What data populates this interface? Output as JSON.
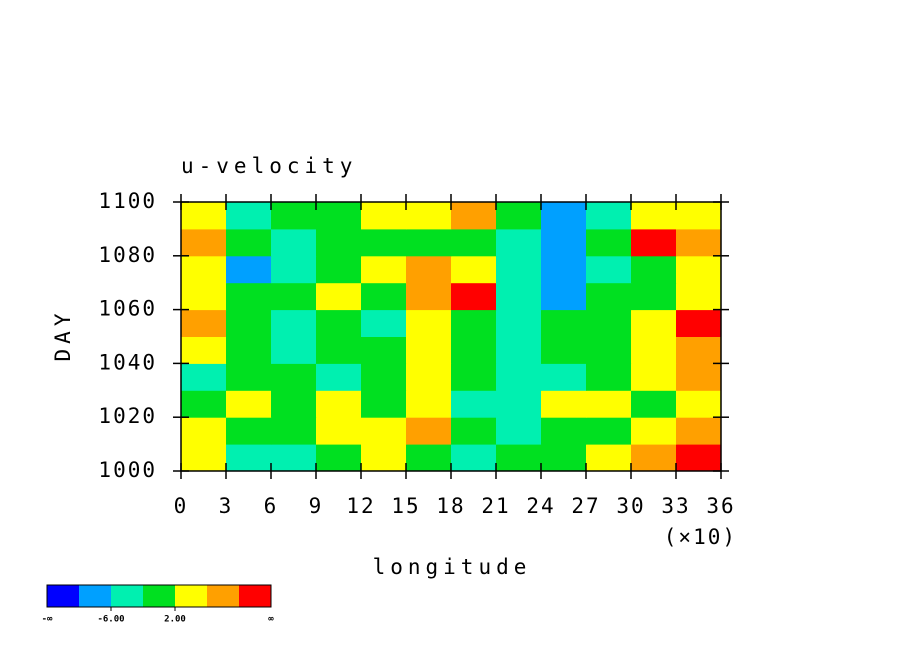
{
  "chart_data": {
    "type": "contour",
    "title": "u-velocity",
    "x_label": "longitude",
    "x_scale_label": "(×10)",
    "y_label": "DAY",
    "xlim": [
      0,
      36
    ],
    "xticks": [
      0,
      3,
      6,
      9,
      12,
      15,
      18,
      21,
      24,
      27,
      30,
      33,
      36
    ],
    "ylim": [
      1000,
      1100
    ],
    "yticks": [
      1000,
      1020,
      1040,
      1060,
      1080,
      1100
    ],
    "levels": [
      -10,
      -6,
      -2,
      2,
      6,
      10
    ],
    "colors": [
      "#0000ff",
      "#00a0ff",
      "#00f0b0",
      "#00e020",
      "#ffff00",
      "#ffa000",
      "#ff0000"
    ],
    "colorbar_ends": [
      "-∞",
      "∞"
    ],
    "colorbar_ticks": [
      {
        "value": -6,
        "label": "-6.00"
      },
      {
        "value": 2,
        "label": "2.00"
      }
    ],
    "z": [
      [
        2,
        -4,
        -3,
        0,
        3,
        -1,
        -4,
        0,
        -1,
        4,
        8,
        12
      ],
      [
        3,
        -2,
        1,
        4,
        5,
        7,
        0,
        -3,
        -1,
        0,
        5,
        7
      ],
      [
        1,
        3,
        -2,
        4,
        0,
        3,
        -3,
        -5,
        2,
        3,
        1,
        5
      ],
      [
        -3,
        -1,
        0,
        -4,
        1,
        4,
        -2,
        -5,
        -3,
        1,
        3,
        6
      ],
      [
        4,
        -2,
        -5,
        0,
        -2,
        5,
        0,
        -3,
        -1,
        -2,
        2,
        7
      ],
      [
        8,
        0,
        -3,
        -1,
        -4,
        2,
        -1,
        -6,
        -2,
        0,
        4,
        11
      ],
      [
        5,
        -1,
        0,
        3,
        -2,
        6,
        11,
        -3,
        -7,
        -2,
        1,
        4
      ],
      [
        3,
        -7,
        -3,
        -1,
        4,
        8,
        3,
        -4,
        -8,
        -3,
        0,
        3
      ],
      [
        6,
        -2,
        -4,
        1,
        -2,
        0,
        -1,
        -4,
        -9,
        1,
        11,
        9
      ],
      [
        2,
        -3,
        1,
        0,
        3,
        2,
        6,
        -2,
        -7,
        -3,
        2,
        5
      ]
    ]
  }
}
